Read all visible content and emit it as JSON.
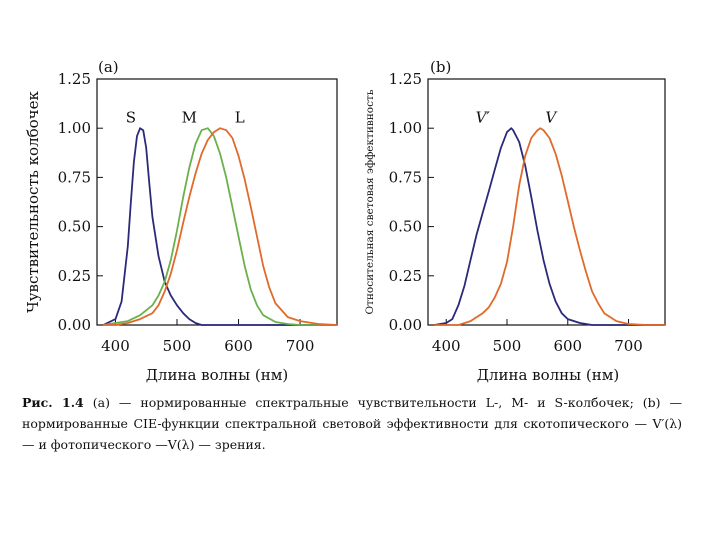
{
  "figure": {
    "caption": {
      "prefix": "Рис. 1.4",
      "text": "(a) — нормированные спектральные чувствительности L-, M- и S-колбочек; (b) — нормированные CIE-функции спектральной световой эффективности для скотопического — V′(λ) — и фотопического —V(λ) — зрения."
    }
  },
  "chart_data": [
    {
      "type": "line",
      "panel_label": "(a)",
      "ylabel": "Чувствительность колбочек",
      "xlabel": "Длина волны (нм)",
      "xlim": [
        370,
        760
      ],
      "ylim": [
        0,
        1.25
      ],
      "xticks": [
        400,
        500,
        600,
        700
      ],
      "xtick_labels": [
        "400",
        "500",
        "600",
        "700"
      ],
      "yticks": [
        0,
        0.25,
        0.5,
        0.75,
        1.0,
        1.25
      ],
      "ytick_labels": [
        "0.00",
        "0.25",
        "0.50",
        "0.75",
        "1.00",
        "1.25"
      ],
      "series": [
        {
          "name": "S",
          "color": "#2a2a7a",
          "x": [
            380,
            400,
            410,
            420,
            425,
            430,
            435,
            440,
            445,
            450,
            455,
            460,
            470,
            480,
            490,
            500,
            510,
            520,
            530,
            540,
            560,
            580,
            600,
            620,
            640,
            700,
            760
          ],
          "y": [
            0.0,
            0.03,
            0.12,
            0.4,
            0.62,
            0.83,
            0.96,
            1.0,
            0.99,
            0.9,
            0.72,
            0.55,
            0.35,
            0.22,
            0.15,
            0.1,
            0.06,
            0.03,
            0.01,
            0.0,
            0.0,
            0.0,
            0.0,
            0.0,
            0.0,
            0.0,
            0.0
          ]
        },
        {
          "name": "M",
          "color": "#6ab04c",
          "x": [
            380,
            400,
            420,
            440,
            460,
            470,
            480,
            490,
            500,
            510,
            520,
            530,
            540,
            550,
            560,
            570,
            580,
            590,
            600,
            610,
            620,
            630,
            640,
            660,
            680,
            700,
            760
          ],
          "y": [
            0.0,
            0.01,
            0.02,
            0.05,
            0.1,
            0.15,
            0.22,
            0.33,
            0.48,
            0.65,
            0.8,
            0.92,
            0.99,
            1.0,
            0.96,
            0.87,
            0.75,
            0.6,
            0.45,
            0.3,
            0.18,
            0.1,
            0.05,
            0.015,
            0.005,
            0.0,
            0.0
          ]
        },
        {
          "name": "L",
          "color": "#e06a2a",
          "x": [
            380,
            400,
            420,
            440,
            460,
            470,
            480,
            490,
            500,
            510,
            520,
            530,
            540,
            550,
            560,
            570,
            580,
            590,
            600,
            610,
            620,
            630,
            640,
            650,
            660,
            680,
            700,
            730,
            760
          ],
          "y": [
            0.0,
            0.0,
            0.01,
            0.03,
            0.06,
            0.1,
            0.17,
            0.26,
            0.38,
            0.52,
            0.65,
            0.77,
            0.87,
            0.94,
            0.98,
            1.0,
            0.99,
            0.95,
            0.86,
            0.74,
            0.6,
            0.45,
            0.3,
            0.19,
            0.11,
            0.04,
            0.02,
            0.005,
            0.0
          ]
        }
      ],
      "annotations": [
        {
          "text": "S",
          "x": 425,
          "y": 1.03
        },
        {
          "text": "M",
          "x": 520,
          "y": 1.03
        },
        {
          "text": "L",
          "x": 602,
          "y": 1.03
        }
      ]
    },
    {
      "type": "line",
      "panel_label": "(b)",
      "ylabel": "Относительная световая эффективность",
      "xlabel": "Длина волны (нм)",
      "xlim": [
        370,
        760
      ],
      "ylim": [
        0,
        1.25
      ],
      "xticks": [
        400,
        500,
        600,
        700
      ],
      "xtick_labels": [
        "400",
        "500",
        "600",
        "700"
      ],
      "yticks": [
        0,
        0.25,
        0.5,
        0.75,
        1.0,
        1.25
      ],
      "ytick_labels": [
        "0.00",
        "0.25",
        "0.50",
        "0.75",
        "1.00",
        "1.25"
      ],
      "series": [
        {
          "name": "V′",
          "color": "#2a2a7a",
          "x": [
            380,
            400,
            410,
            420,
            430,
            440,
            450,
            460,
            470,
            480,
            490,
            500,
            507,
            510,
            520,
            530,
            540,
            550,
            560,
            570,
            580,
            590,
            600,
            620,
            640,
            700,
            760
          ],
          "y": [
            0.0,
            0.01,
            0.03,
            0.1,
            0.2,
            0.33,
            0.46,
            0.57,
            0.68,
            0.79,
            0.9,
            0.98,
            1.0,
            0.99,
            0.93,
            0.81,
            0.65,
            0.48,
            0.33,
            0.21,
            0.12,
            0.06,
            0.03,
            0.01,
            0.0,
            0.0,
            0.0
          ]
        },
        {
          "name": "V",
          "color": "#e06a2a",
          "x": [
            380,
            420,
            440,
            460,
            470,
            480,
            490,
            500,
            510,
            520,
            530,
            540,
            550,
            555,
            560,
            570,
            580,
            590,
            600,
            610,
            620,
            630,
            640,
            650,
            660,
            680,
            700,
            730,
            760
          ],
          "y": [
            0.0,
            0.0,
            0.02,
            0.06,
            0.09,
            0.14,
            0.21,
            0.32,
            0.5,
            0.71,
            0.86,
            0.95,
            0.99,
            1.0,
            0.99,
            0.95,
            0.87,
            0.76,
            0.63,
            0.5,
            0.38,
            0.27,
            0.17,
            0.11,
            0.06,
            0.02,
            0.005,
            0.0,
            0.0
          ]
        }
      ],
      "annotations": [
        {
          "text": "V′",
          "x": 460,
          "y": 1.03,
          "italic": true
        },
        {
          "text": "V",
          "x": 572,
          "y": 1.03,
          "italic": true
        }
      ]
    }
  ]
}
